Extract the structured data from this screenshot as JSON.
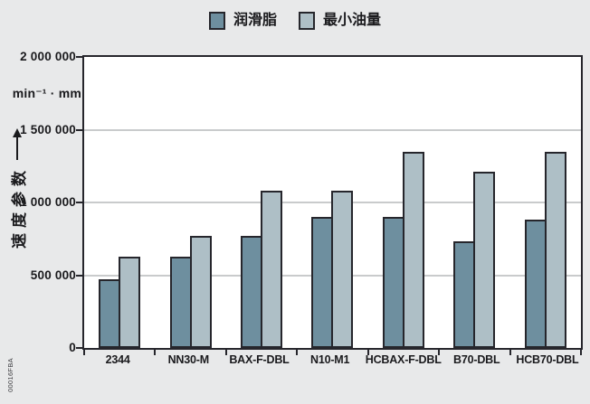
{
  "figure": {
    "background": "#e8e9ea",
    "watermark": "00016FBA"
  },
  "chart_data": {
    "type": "bar",
    "title": "",
    "categories": [
      "2344",
      "NN30-M",
      "BAX-F-DBL",
      "N10-M1",
      "HCBAX-F-DBL",
      "B70-DBL",
      "HCB70-DBL"
    ],
    "series": [
      {
        "name": "润滑脂",
        "color": "#6e8f9f",
        "values": [
          470000,
          630000,
          770000,
          900000,
          900000,
          730000,
          880000
        ]
      },
      {
        "name": "最小油量",
        "color": "#aebfc6",
        "values": [
          630000,
          770000,
          1080000,
          1080000,
          1350000,
          1210000,
          1350000
        ]
      }
    ],
    "xlabel": "",
    "ylabel": "速度参数",
    "unit_label": "min⁻¹ · mm",
    "ylim": [
      0,
      2000000
    ],
    "yticks": [
      {
        "value": 2000000,
        "label": "2 000 000"
      },
      {
        "value": 1500000,
        "label": "1 500 000"
      },
      {
        "value": 1000000,
        "label": "1 000 000"
      },
      {
        "value": 500000,
        "label": "500 000"
      },
      {
        "value": 0,
        "label": "0"
      }
    ],
    "grid": true,
    "legend_position": "top",
    "bar_border_color": "#26262c",
    "gridline_color": "#c9cbcc",
    "plot_background": "#ffffff",
    "text_color": "#1a1a1d"
  }
}
